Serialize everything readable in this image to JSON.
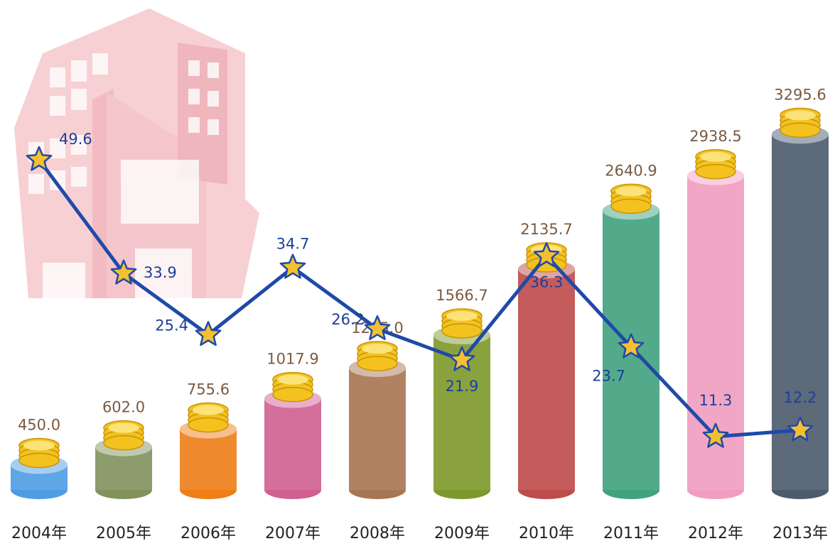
{
  "chart_data": {
    "type": "bar",
    "categories": [
      "2004年",
      "2005年",
      "2006年",
      "2007年",
      "2008年",
      "2009年",
      "2010年",
      "2011年",
      "2012年",
      "2013年"
    ],
    "ylim": [
      0,
      3500
    ],
    "y2lim": [
      0,
      55
    ],
    "series": [
      {
        "values": [
          450.0,
          602.0,
          755.6,
          1017.9,
          1285.0,
          1566.7,
          2135.7,
          2640.9,
          2938.5,
          3295.6
        ],
        "value_labels": [
          "450.0",
          "602.0",
          "755.6",
          "1017.9",
          "1285.0",
          "1566.7",
          "2135.7",
          "2640.9",
          "2938.5",
          "3295.6"
        ],
        "color": [
          "#5ea6e6",
          "#8c9c6c",
          "#f08a2e",
          "#d46e9c",
          "#b08262",
          "#8aa23e",
          "#c45c5c",
          "#52aa8a",
          "#f2a6c6",
          "#5c6a7a"
        ]
      },
      {
        "type": "line",
        "axis": "y2",
        "color": "#1f4aa8",
        "values": [
          49.6,
          33.9,
          25.4,
          34.7,
          26.2,
          21.9,
          36.3,
          23.7,
          11.3,
          12.2
        ]
      }
    ]
  }
}
